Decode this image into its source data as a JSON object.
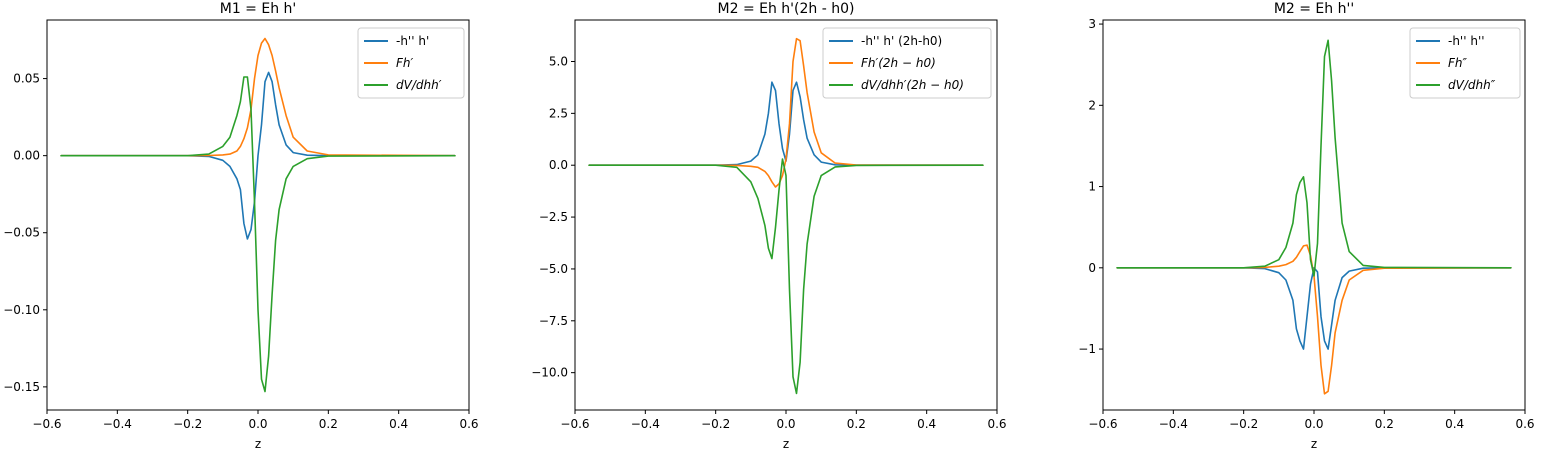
{
  "colors": {
    "series1": "#1f77b4",
    "series2": "#ff7f0e",
    "series3": "#2ca02c"
  },
  "chart_data": [
    {
      "type": "line",
      "title": "M1 = Eh h'",
      "xlabel": "z",
      "ylabel": "",
      "xlim": [
        -0.6,
        0.6
      ],
      "ylim": [
        -0.165,
        0.088
      ],
      "xticks": [
        "−0.6",
        "−0.4",
        "−0.2",
        "0.0",
        "0.2",
        "0.4",
        "0.6"
      ],
      "xtick_values": [
        -0.6,
        -0.4,
        -0.2,
        0.0,
        0.2,
        0.4,
        0.6
      ],
      "yticks": [
        "−0.15",
        "−0.10",
        "−0.05",
        "0.00",
        "0.05"
      ],
      "ytick_values": [
        -0.15,
        -0.1,
        -0.05,
        0.0,
        0.05
      ],
      "legend_position": "top-right",
      "x": [
        -0.56,
        -0.2,
        -0.14,
        -0.1,
        -0.08,
        -0.06,
        -0.05,
        -0.04,
        -0.03,
        -0.02,
        -0.01,
        0.0,
        0.01,
        0.02,
        0.03,
        0.04,
        0.05,
        0.06,
        0.08,
        0.1,
        0.14,
        0.2,
        0.56
      ],
      "series": [
        {
          "name": "-h'' h'",
          "values": [
            0,
            0,
            -0.0005,
            -0.003,
            -0.007,
            -0.015,
            -0.022,
            -0.044,
            -0.054,
            -0.048,
            -0.03,
            0.0,
            0.02,
            0.048,
            0.054,
            0.048,
            0.033,
            0.02,
            0.007,
            0.002,
            0.0003,
            0,
            0
          ]
        },
        {
          "name": "Fh′",
          "values": [
            0,
            0,
            0.0001,
            0.0005,
            0.001,
            0.003,
            0.006,
            0.011,
            0.018,
            0.03,
            0.05,
            0.065,
            0.073,
            0.076,
            0.072,
            0.065,
            0.055,
            0.044,
            0.026,
            0.012,
            0.003,
            0.0005,
            0
          ]
        },
        {
          "name": "dV/dhh′",
          "values": [
            0,
            0,
            0.001,
            0.006,
            0.012,
            0.026,
            0.035,
            0.051,
            0.051,
            0.03,
            -0.03,
            -0.1,
            -0.145,
            -0.153,
            -0.13,
            -0.09,
            -0.055,
            -0.035,
            -0.015,
            -0.007,
            -0.002,
            -0.0003,
            0
          ]
        }
      ]
    },
    {
      "type": "line",
      "title": "M2 = Eh h'(2h - h0)",
      "xlabel": "z",
      "ylabel": "",
      "xlim": [
        -0.6,
        0.6
      ],
      "ylim": [
        -11.8,
        7.0
      ],
      "xticks": [
        "−0.6",
        "−0.4",
        "−0.2",
        "0.0",
        "0.2",
        "0.4",
        "0.6"
      ],
      "xtick_values": [
        -0.6,
        -0.4,
        -0.2,
        0.0,
        0.2,
        0.4,
        0.6
      ],
      "yticks": [
        "−10.0",
        "−7.5",
        "−5.0",
        "−2.5",
        "0.0",
        "2.5",
        "5.0"
      ],
      "ytick_values": [
        -10.0,
        -7.5,
        -5.0,
        -2.5,
        0.0,
        2.5,
        5.0
      ],
      "legend_position": "top-right",
      "x": [
        -0.56,
        -0.2,
        -0.14,
        -0.1,
        -0.08,
        -0.06,
        -0.05,
        -0.04,
        -0.03,
        -0.02,
        -0.01,
        0.0,
        0.01,
        0.02,
        0.03,
        0.04,
        0.05,
        0.06,
        0.08,
        0.1,
        0.14,
        0.2,
        0.56
      ],
      "series": [
        {
          "name": "-h'' h' (2h-h0)",
          "values": [
            0,
            0,
            0.03,
            0.2,
            0.5,
            1.5,
            2.5,
            4.0,
            3.6,
            2.0,
            0.8,
            0.2,
            1.5,
            3.6,
            4.0,
            3.3,
            2.2,
            1.3,
            0.5,
            0.15,
            0.02,
            0,
            0
          ]
        },
        {
          "name": "Fh′(2h − h0)",
          "values": [
            0,
            0,
            -0.01,
            -0.05,
            -0.1,
            -0.3,
            -0.5,
            -0.8,
            -1.05,
            -0.9,
            -0.5,
            0.3,
            2.0,
            5.0,
            6.1,
            6.0,
            4.8,
            3.5,
            1.6,
            0.6,
            0.1,
            0.01,
            0
          ]
        },
        {
          "name": "dV/dhh′(2h − h0)",
          "values": [
            0,
            0,
            -0.1,
            -0.8,
            -1.6,
            -2.9,
            -4.0,
            -4.5,
            -3.0,
            -1.2,
            0.3,
            -0.5,
            -6.0,
            -10.2,
            -11.0,
            -9.5,
            -6.0,
            -3.8,
            -1.5,
            -0.5,
            -0.08,
            -0.01,
            0
          ]
        }
      ]
    },
    {
      "type": "line",
      "title": "M2 = Eh h''",
      "xlabel": "z",
      "ylabel": "",
      "xlim": [
        -0.6,
        0.6
      ],
      "ylim": [
        -1.75,
        3.05
      ],
      "xticks": [
        "−0.6",
        "−0.4",
        "−0.2",
        "0.0",
        "0.2",
        "0.4",
        "0.6"
      ],
      "xtick_values": [
        -0.6,
        -0.4,
        -0.2,
        0.0,
        0.2,
        0.4,
        0.6
      ],
      "yticks": [
        "−1",
        "0",
        "1",
        "2",
        "3"
      ],
      "ytick_values": [
        -1,
        0,
        1,
        2,
        3
      ],
      "legend_position": "top-right",
      "x": [
        -0.56,
        -0.2,
        -0.14,
        -0.1,
        -0.08,
        -0.06,
        -0.05,
        -0.04,
        -0.03,
        -0.02,
        -0.01,
        0.0,
        0.01,
        0.02,
        0.03,
        0.04,
        0.05,
        0.06,
        0.08,
        0.1,
        0.14,
        0.2,
        0.56
      ],
      "series": [
        {
          "name": "-h'' h''",
          "values": [
            0,
            0,
            -0.01,
            -0.06,
            -0.15,
            -0.4,
            -0.75,
            -0.9,
            -1.0,
            -0.6,
            -0.2,
            0.0,
            -0.05,
            -0.6,
            -0.9,
            -1.0,
            -0.7,
            -0.4,
            -0.12,
            -0.04,
            -0.005,
            0,
            0
          ]
        },
        {
          "name": "Fh″",
          "values": [
            0,
            0,
            0.005,
            0.02,
            0.04,
            0.08,
            0.13,
            0.2,
            0.27,
            0.28,
            0.15,
            -0.1,
            -0.6,
            -1.2,
            -1.55,
            -1.52,
            -1.2,
            -0.8,
            -0.4,
            -0.15,
            -0.03,
            -0.005,
            0
          ]
        },
        {
          "name": "dV/dhh″",
          "values": [
            0,
            0,
            0.02,
            0.1,
            0.25,
            0.55,
            0.9,
            1.05,
            1.12,
            0.8,
            0.1,
            -0.1,
            0.3,
            1.5,
            2.6,
            2.8,
            2.3,
            1.6,
            0.55,
            0.2,
            0.03,
            0.005,
            0
          ]
        }
      ]
    }
  ]
}
